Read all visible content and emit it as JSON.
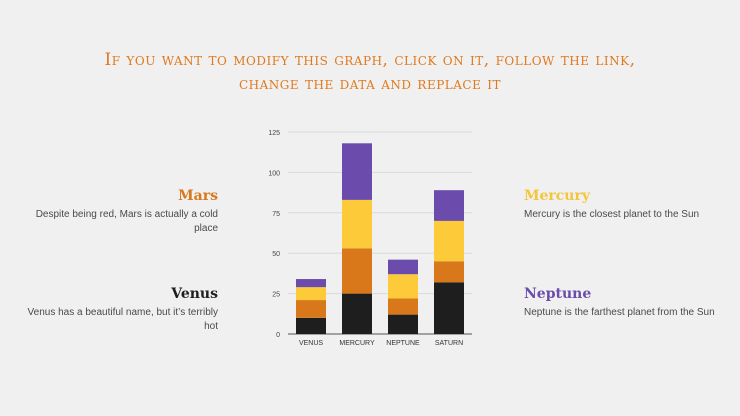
{
  "title": "If you want to modify this graph, click on it, follow the link, change the data and replace it",
  "colors": {
    "title": "#e07a1f",
    "mars": "#d9781a",
    "venus": "#1e1e1e",
    "mercury": "#f5c53a",
    "neptune": "#6b4bab"
  },
  "blocks": {
    "mars": {
      "heading": "Mars",
      "text": "Despite being red, Mars is actually a cold place"
    },
    "venus": {
      "heading": "Venus",
      "text": "Venus has a beautiful name, but it’s terribly hot"
    },
    "mercury": {
      "heading": "Mercury",
      "text": "Mercury is the closest planet to the Sun"
    },
    "neptune": {
      "heading": "Neptune",
      "text": "Neptune is the farthest planet from the Sun"
    }
  },
  "chart_data": {
    "type": "bar",
    "stacked": true,
    "categories": [
      "VENUS",
      "MERCURY",
      "NEPTUNE",
      "SATURN"
    ],
    "series": [
      {
        "values": [
          10,
          25,
          12,
          32
        ],
        "color": "#1e1e1e"
      },
      {
        "values": [
          11,
          28,
          10,
          13
        ],
        "color": "#d9781a"
      },
      {
        "values": [
          8,
          30,
          15,
          25
        ],
        "color": "#fdcb3a"
      },
      {
        "values": [
          5,
          35,
          9,
          19
        ],
        "color": "#6b4bab"
      }
    ],
    "ylim": [
      0,
      125
    ],
    "yticks": [
      0,
      25,
      50,
      75,
      100,
      125
    ],
    "grid": true,
    "xlabel": "",
    "ylabel": ""
  }
}
